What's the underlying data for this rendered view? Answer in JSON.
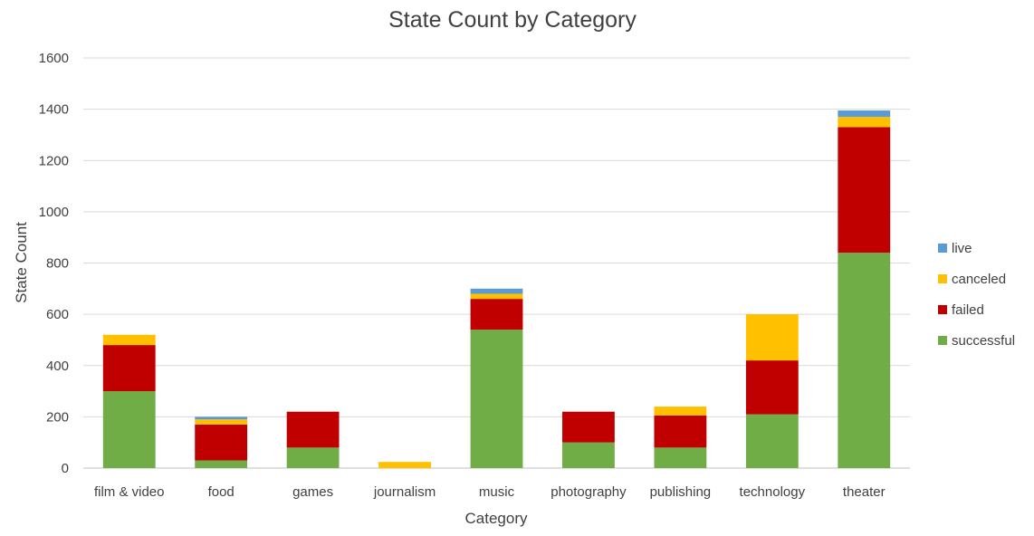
{
  "chart_data": {
    "type": "bar",
    "stacked": true,
    "title": "State Count by Category",
    "xlabel": "Category",
    "ylabel": "State Count",
    "ylim": [
      0,
      1600
    ],
    "yticks": [
      0,
      200,
      400,
      600,
      800,
      1000,
      1200,
      1400,
      1600
    ],
    "grid": true,
    "legend_position": "right",
    "categories": [
      "film & video",
      "food",
      "games",
      "journalism",
      "music",
      "photography",
      "publishing",
      "technology",
      "theater"
    ],
    "series": [
      {
        "name": "successful",
        "color": "#70ad47",
        "values": [
          300,
          30,
          80,
          0,
          540,
          100,
          80,
          210,
          840
        ]
      },
      {
        "name": "failed",
        "color": "#c00000",
        "values": [
          180,
          140,
          140,
          0,
          120,
          120,
          125,
          210,
          490
        ]
      },
      {
        "name": "canceled",
        "color": "#ffc000",
        "values": [
          40,
          20,
          0,
          24,
          20,
          0,
          35,
          180,
          40
        ]
      },
      {
        "name": "live",
        "color": "#5b9bd5",
        "values": [
          0,
          10,
          0,
          0,
          20,
          0,
          0,
          0,
          25
        ]
      }
    ],
    "legend_order": [
      "live",
      "canceled",
      "failed",
      "successful"
    ]
  }
}
